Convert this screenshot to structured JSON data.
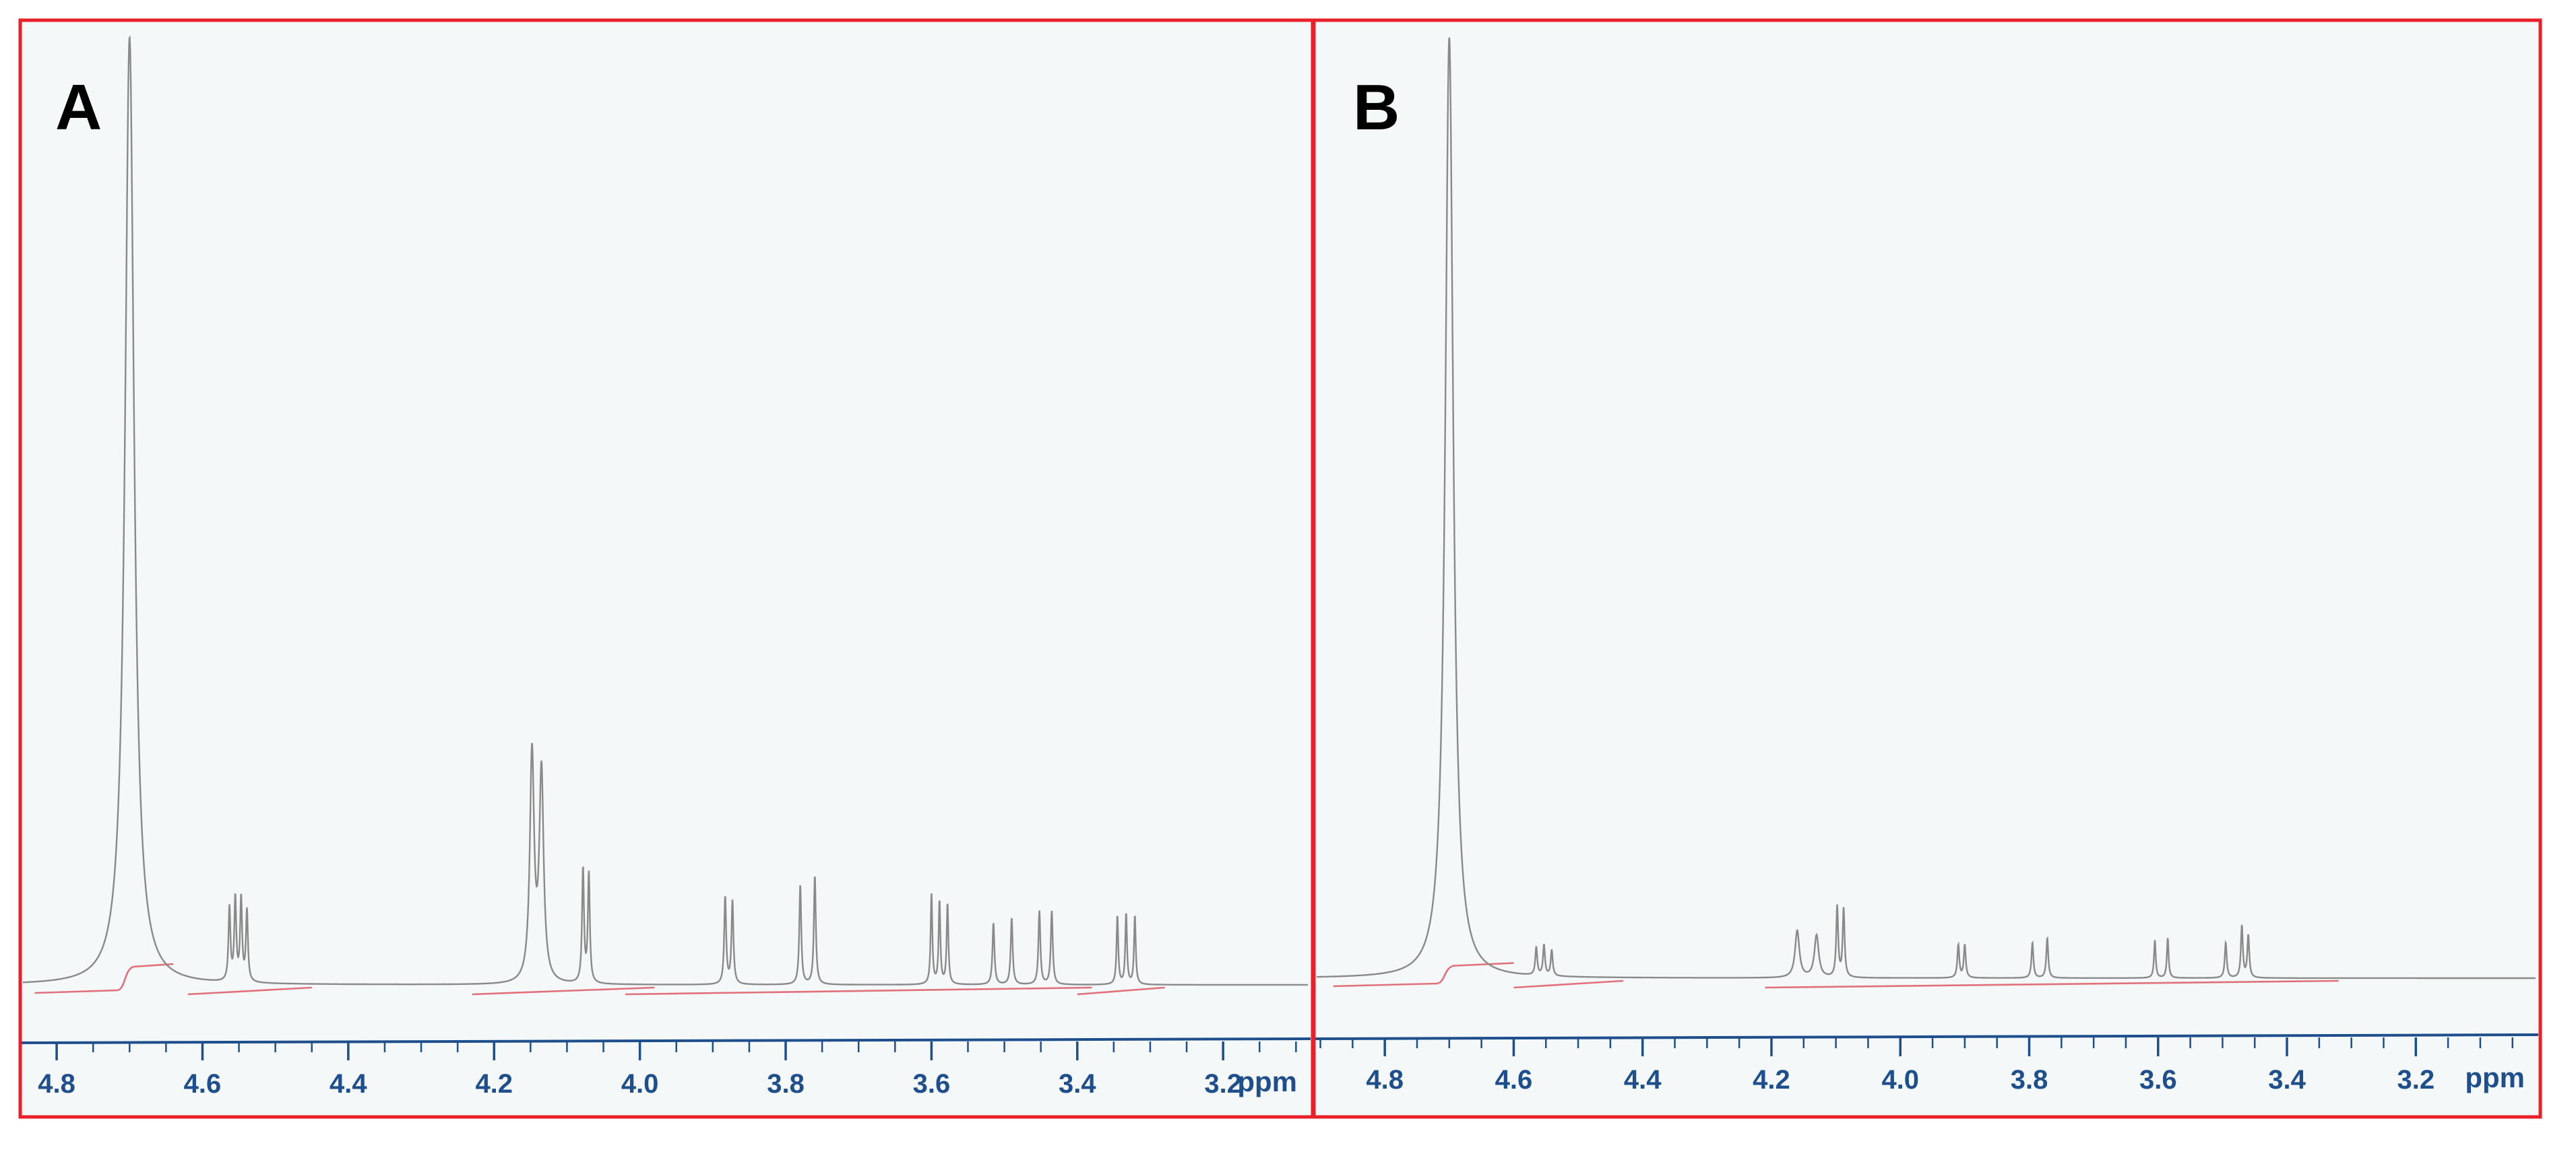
{
  "colors": {
    "frame": "#e8202a",
    "paper": "#f4f8f8",
    "axis": "#1e4f8c",
    "trace": "#8a8a8a",
    "integral": "#e0707a",
    "label": "#000000"
  },
  "chart_data": [
    {
      "panel_label": "A",
      "type": "line",
      "xlabel": "ppm",
      "xlim": [
        4.85,
        3.08
      ],
      "x_reversed": true,
      "xticks": [
        4.8,
        4.6,
        4.4,
        4.2,
        4.0,
        3.8,
        3.6,
        3.4,
        3.2
      ],
      "xtick_labels": [
        "4.8",
        "4.6",
        "4.4",
        "4.2",
        "4.0",
        "3.8",
        "3.6",
        "3.4",
        "3.2"
      ],
      "peaks": [
        {
          "x": 4.7,
          "height": 2.0,
          "width": 0.0075
        },
        {
          "x": 4.563,
          "height": 0.155,
          "width": 0.0016
        },
        {
          "x": 4.555,
          "height": 0.175,
          "width": 0.0016
        },
        {
          "x": 4.547,
          "height": 0.175,
          "width": 0.0016
        },
        {
          "x": 4.539,
          "height": 0.15,
          "width": 0.0016
        },
        {
          "x": 4.148,
          "height": 0.48,
          "width": 0.0035
        },
        {
          "x": 4.135,
          "height": 0.44,
          "width": 0.0035
        },
        {
          "x": 4.078,
          "height": 0.24,
          "width": 0.0016
        },
        {
          "x": 4.07,
          "height": 0.23,
          "width": 0.0016
        },
        {
          "x": 3.883,
          "height": 0.185,
          "width": 0.0016
        },
        {
          "x": 3.873,
          "height": 0.175,
          "width": 0.0016
        },
        {
          "x": 3.78,
          "height": 0.21,
          "width": 0.0016
        },
        {
          "x": 3.76,
          "height": 0.23,
          "width": 0.0016
        },
        {
          "x": 3.6,
          "height": 0.19,
          "width": 0.0014
        },
        {
          "x": 3.589,
          "height": 0.175,
          "width": 0.0014
        },
        {
          "x": 3.578,
          "height": 0.17,
          "width": 0.0014
        },
        {
          "x": 3.515,
          "height": 0.13,
          "width": 0.0016
        },
        {
          "x": 3.49,
          "height": 0.14,
          "width": 0.0016
        },
        {
          "x": 3.452,
          "height": 0.155,
          "width": 0.0016
        },
        {
          "x": 3.435,
          "height": 0.155,
          "width": 0.0016
        },
        {
          "x": 3.345,
          "height": 0.145,
          "width": 0.0014
        },
        {
          "x": 3.333,
          "height": 0.15,
          "width": 0.0014
        },
        {
          "x": 3.321,
          "height": 0.145,
          "width": 0.0014
        }
      ],
      "integrals": [
        {
          "from": 4.83,
          "to": 4.64,
          "rise": 0.1
        },
        {
          "from": 4.62,
          "to": 4.45,
          "rise": 0.0
        },
        {
          "from": 4.23,
          "to": 3.98,
          "rise": 0.0
        },
        {
          "from": 4.02,
          "to": 3.38,
          "rise": 0.0
        },
        {
          "from": 3.4,
          "to": 3.28,
          "rise": 0.0
        }
      ]
    },
    {
      "panel_label": "B",
      "type": "line",
      "xlabel": "ppm",
      "xlim": [
        4.91,
        3.01
      ],
      "x_reversed": true,
      "xticks": [
        4.8,
        4.6,
        4.4,
        4.2,
        4.0,
        3.8,
        3.6,
        3.4,
        3.2
      ],
      "xtick_labels": [
        "4.8",
        "4.6",
        "4.4",
        "4.2",
        "4.0",
        "3.8",
        "3.6",
        "3.4",
        "3.2"
      ],
      "peaks": [
        {
          "x": 4.7,
          "height": 2.0,
          "width": 0.0075
        },
        {
          "x": 4.565,
          "height": 0.06,
          "width": 0.0018
        },
        {
          "x": 4.553,
          "height": 0.065,
          "width": 0.0018
        },
        {
          "x": 4.541,
          "height": 0.055,
          "width": 0.0018
        },
        {
          "x": 4.16,
          "height": 0.1,
          "width": 0.004
        },
        {
          "x": 4.13,
          "height": 0.09,
          "width": 0.004
        },
        {
          "x": 4.098,
          "height": 0.15,
          "width": 0.0018
        },
        {
          "x": 4.088,
          "height": 0.145,
          "width": 0.0018
        },
        {
          "x": 3.91,
          "height": 0.07,
          "width": 0.0018
        },
        {
          "x": 3.9,
          "height": 0.07,
          "width": 0.0018
        },
        {
          "x": 3.795,
          "height": 0.075,
          "width": 0.0018
        },
        {
          "x": 3.772,
          "height": 0.085,
          "width": 0.0018
        },
        {
          "x": 3.605,
          "height": 0.08,
          "width": 0.0016
        },
        {
          "x": 3.585,
          "height": 0.085,
          "width": 0.0016
        },
        {
          "x": 3.495,
          "height": 0.075,
          "width": 0.0018
        },
        {
          "x": 3.47,
          "height": 0.11,
          "width": 0.0018
        },
        {
          "x": 3.46,
          "height": 0.09,
          "width": 0.0018
        }
      ],
      "integrals": [
        {
          "from": 4.88,
          "to": 4.6,
          "rise": 0.08
        },
        {
          "from": 4.6,
          "to": 4.43,
          "rise": 0.0
        },
        {
          "from": 4.21,
          "to": 3.32,
          "rise": 0.0
        }
      ]
    }
  ]
}
